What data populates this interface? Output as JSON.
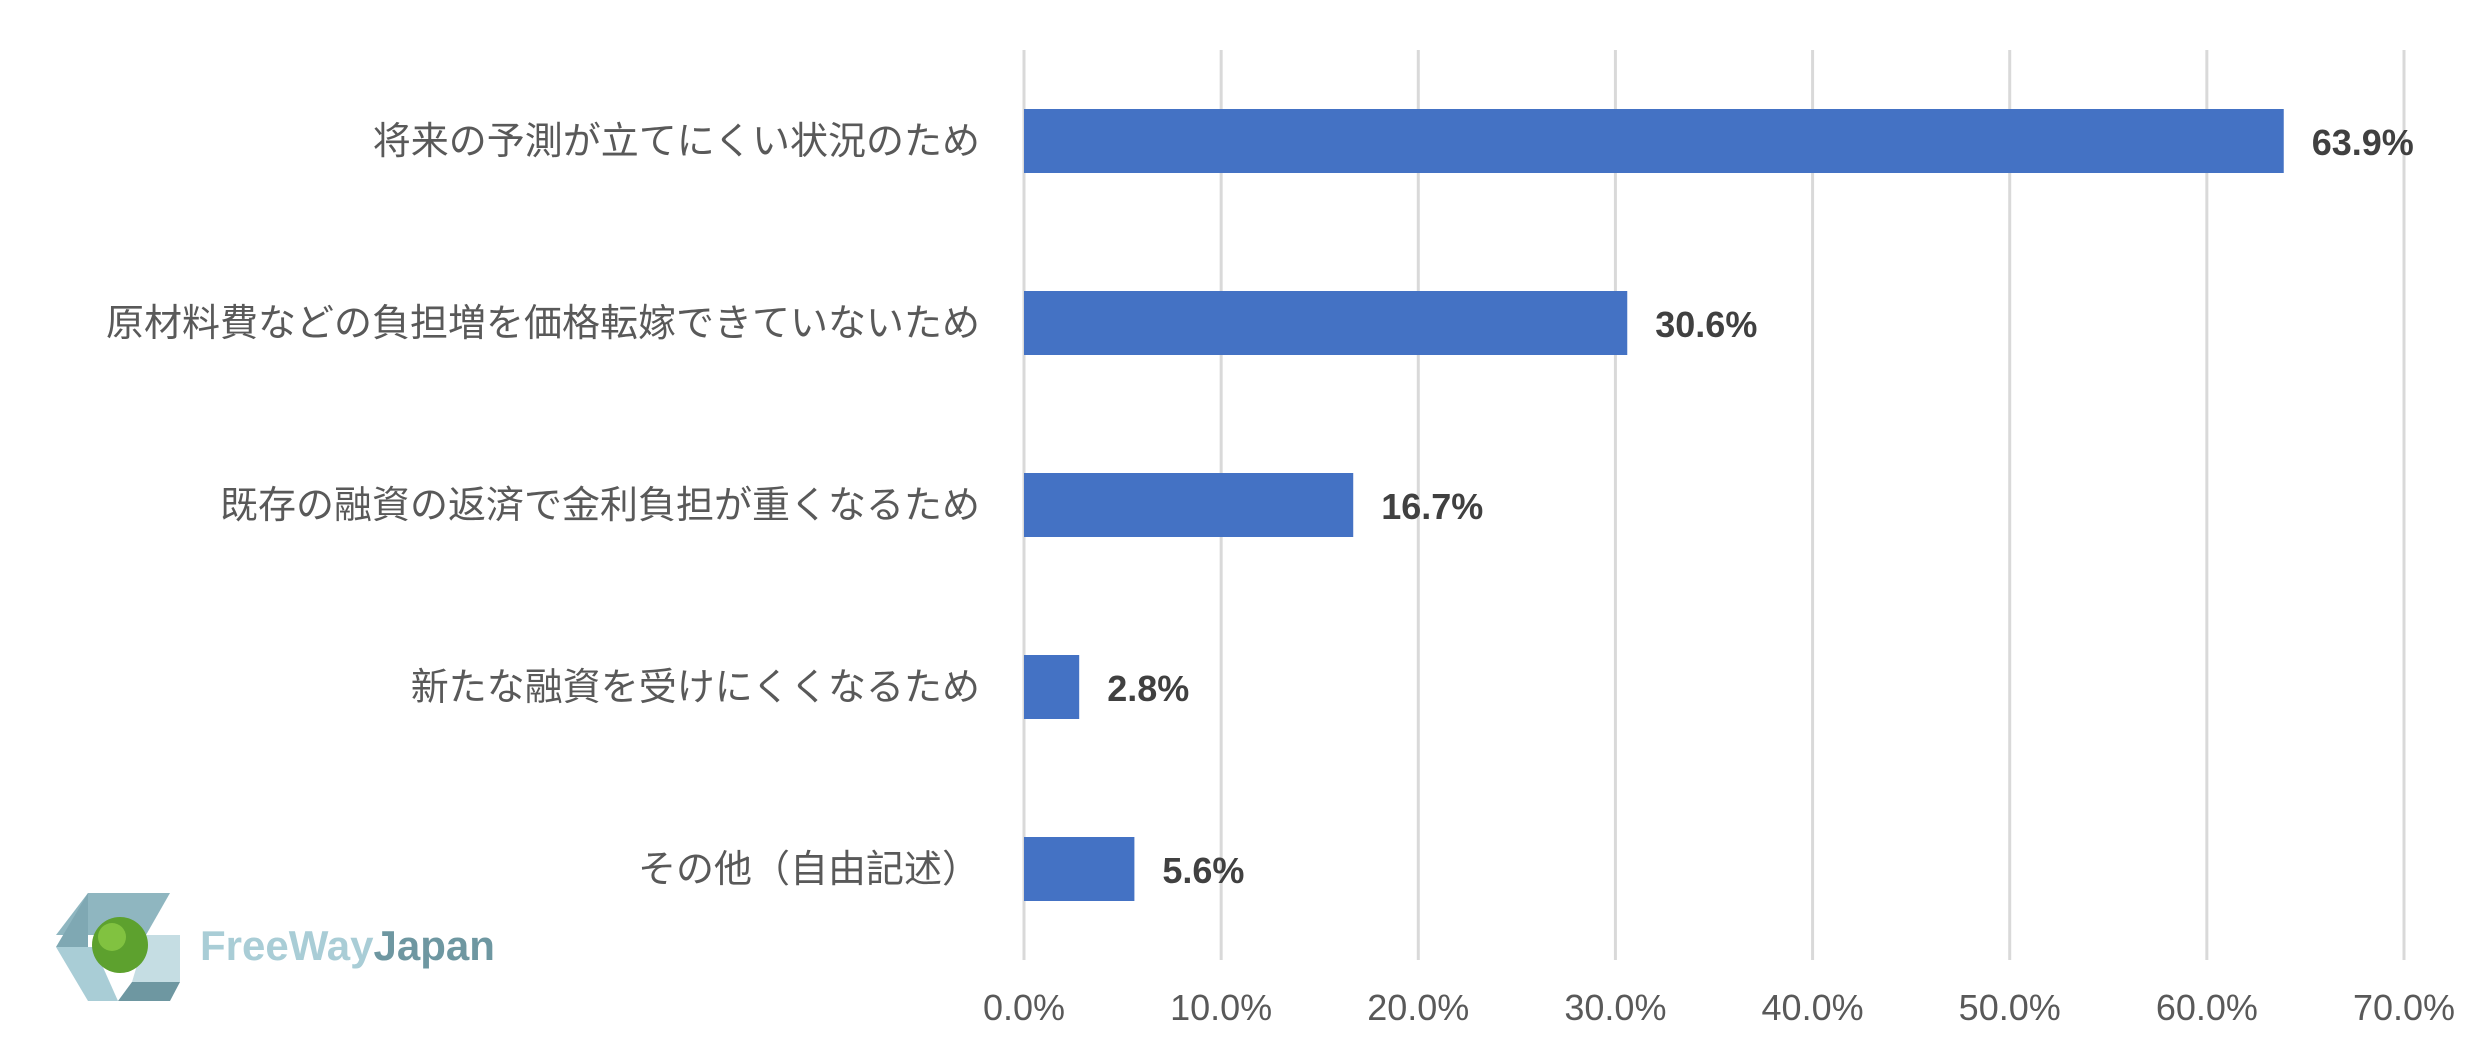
{
  "chart_data": {
    "type": "bar",
    "orientation": "horizontal",
    "categories": [
      "将来の予測が立てにくい状況のため",
      "原材料費などの負担増を価格転嫁できていないため",
      "既存の融資の返済で金利負担が重くなるため",
      "新たな融資を受けにくくなるため",
      "その他（自由記述）"
    ],
    "values": [
      63.9,
      30.6,
      16.7,
      2.8,
      5.6
    ],
    "data_labels": [
      "63.9%",
      "30.6%",
      "16.7%",
      "2.8%",
      "5.6%"
    ],
    "x_ticks": [
      "0.0%",
      "10.0%",
      "20.0%",
      "30.0%",
      "40.0%",
      "50.0%",
      "60.0%",
      "70.0%"
    ],
    "xlim": [
      0,
      70
    ],
    "grid": true,
    "bar_color": "#4472C4",
    "grid_color": "#D9D9D9"
  },
  "logo": {
    "word_light": "FreeWay",
    "word_dark": "Japan",
    "color_light": "#A9CDD6",
    "color_dark": "#6E97A1",
    "icon": "freeway-japan-logo-icon"
  }
}
